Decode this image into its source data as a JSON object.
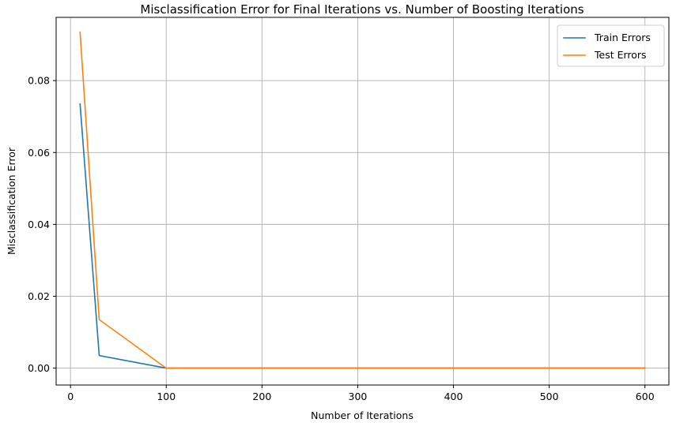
{
  "chart_data": {
    "type": "line",
    "title": "Misclassification Error for Final Iterations vs. Number of Boosting Iterations",
    "xlabel": "Number of Iterations",
    "ylabel": "Misclassification Error",
    "xlim": [
      -15,
      625
    ],
    "ylim": [
      -0.0047,
      0.0976
    ],
    "xticks": [
      0,
      100,
      200,
      300,
      400,
      500,
      600
    ],
    "xtick_labels": [
      "0",
      "100",
      "200",
      "300",
      "400",
      "500",
      "600"
    ],
    "yticks": [
      0.0,
      0.02,
      0.04,
      0.06,
      0.08
    ],
    "ytick_labels": [
      "0.00",
      "0.02",
      "0.04",
      "0.06",
      "0.08"
    ],
    "grid": true,
    "legend_position": "top-right",
    "x": [
      10,
      30,
      100,
      200,
      300,
      400,
      500,
      600
    ],
    "series": [
      {
        "name": "Train Errors",
        "color": "#1f77b4",
        "values": [
          0.0735,
          0.0035,
          0.0,
          0.0,
          0.0,
          0.0,
          0.0,
          0.0
        ]
      },
      {
        "name": "Test Errors",
        "color": "#ff7f0e",
        "values": [
          0.0935,
          0.0135,
          0.0,
          0.0,
          0.0,
          0.0,
          0.0,
          0.0
        ]
      }
    ]
  }
}
